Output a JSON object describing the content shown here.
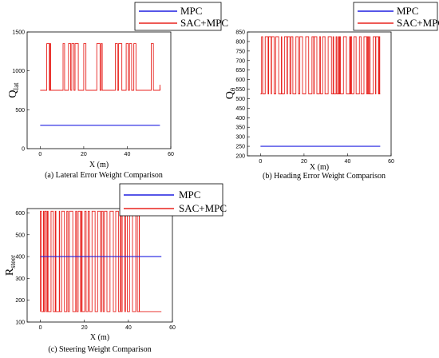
{
  "colors": {
    "mpc": "#1f1fe0",
    "sac": "#e8231f",
    "axis": "#000000",
    "box": "#000000"
  },
  "charts": [
    {
      "caption": "(a) Lateral Error Weight Comparison",
      "xlabel": "X (m)",
      "ylabel_main": "Q",
      "ylabel_sub": "lat",
      "xticks": [
        "0",
        "20",
        "40",
        "60"
      ],
      "yticks": [
        "0",
        "500",
        "1000",
        "1500"
      ],
      "legend": {
        "s1": "MPC",
        "s2": "SAC+MPC"
      }
    },
    {
      "caption": "(b) Heading Error Weight Comparison",
      "xlabel": "X (m)",
      "ylabel_main": "Q",
      "ylabel_sub": "θ",
      "xticks": [
        "0",
        "20",
        "40",
        "60"
      ],
      "yticks": [
        "200",
        "250",
        "300",
        "350",
        "400",
        "450",
        "500",
        "550",
        "600",
        "650",
        "700",
        "750",
        "800",
        "850"
      ],
      "legend": {
        "s1": "MPC",
        "s2": "SAC+MPC"
      }
    },
    {
      "caption": "(c) Steering Weight Comparison",
      "xlabel": "X (m)",
      "ylabel_main": "R",
      "ylabel_sub": "steer",
      "xticks": [
        "0",
        "20",
        "40",
        "60"
      ],
      "yticks": [
        "100",
        "200",
        "300",
        "400",
        "500",
        "600"
      ],
      "legend": {
        "s1": "MPC",
        "s2": "SAC+MPC"
      }
    }
  ],
  "chart_data": [
    {
      "type": "line",
      "xlim": [
        -6,
        60
      ],
      "ylim": [
        0,
        1500
      ],
      "series": [
        {
          "name": "MPC",
          "x": [
            0,
            55
          ],
          "values": [
            300,
            300
          ]
        },
        {
          "name": "SAC+MPC",
          "baseline": 750,
          "high": 1350,
          "spikes": [
            [
              3.0,
              4.2
            ],
            [
              4.5,
              4.8
            ],
            [
              10.5,
              11.2
            ],
            [
              13.0,
              14.0
            ],
            [
              14.5,
              15.5
            ],
            [
              16.0,
              17.5
            ],
            [
              20.0,
              21.0
            ],
            [
              26.0,
              27.5
            ],
            [
              28.0,
              28.5
            ],
            [
              34.5,
              35.5
            ],
            [
              36.0,
              37.5
            ],
            [
              39.5,
              40.5
            ],
            [
              41.0,
              42.0
            ],
            [
              43.0,
              44.0
            ],
            [
              51.0,
              52.0
            ]
          ],
          "x_end": 55
        }
      ],
      "grid": false,
      "legend_position": "top-right"
    },
    {
      "type": "line",
      "xlim": [
        -6,
        60
      ],
      "ylim": [
        200,
        850
      ],
      "series": [
        {
          "name": "MPC",
          "x": [
            0,
            55
          ],
          "values": [
            250,
            250
          ]
        },
        {
          "name": "SAC+MPC",
          "baseline": 525,
          "high": 825,
          "dense_region": [
            0.5,
            55
          ],
          "x_end": 55
        }
      ],
      "grid": false,
      "legend_position": "top-right"
    },
    {
      "type": "line",
      "xlim": [
        -6,
        60
      ],
      "ylim": [
        100,
        620
      ],
      "series": [
        {
          "name": "MPC",
          "x": [
            0,
            55
          ],
          "values": [
            400,
            400
          ]
        },
        {
          "name": "SAC+MPC",
          "baseline": 148,
          "high": 608,
          "dense_region": [
            0,
            45
          ],
          "x_end": 55
        }
      ],
      "grid": false,
      "legend_position": "top-right"
    }
  ]
}
